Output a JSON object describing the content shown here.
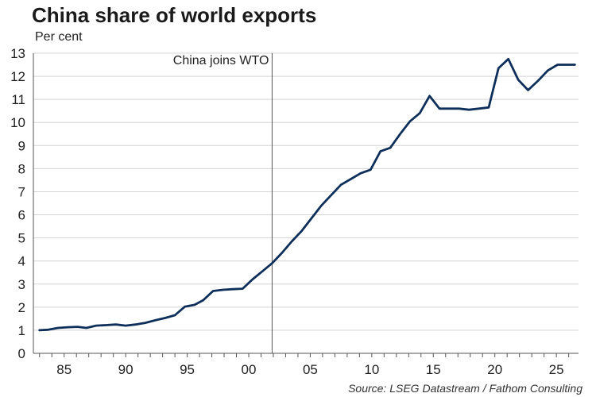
{
  "chart_data": {
    "type": "line",
    "title": "China share of world exports",
    "ylabel": "Per cent",
    "source": "Source: LSEG Datastream / Fathom Consulting",
    "ylim": [
      0,
      13
    ],
    "xlim": [
      1982.5,
      2026.8
    ],
    "yticks": [
      0,
      1,
      2,
      3,
      4,
      5,
      6,
      7,
      8,
      9,
      10,
      11,
      12,
      13
    ],
    "xticks": [
      {
        "value": 1985,
        "label": "85"
      },
      {
        "value": 1990,
        "label": "90"
      },
      {
        "value": 1995,
        "label": "95"
      },
      {
        "value": 2000,
        "label": "00"
      },
      {
        "value": 2005,
        "label": "05"
      },
      {
        "value": 2010,
        "label": "10"
      },
      {
        "value": 2015,
        "label": "15"
      },
      {
        "value": 2020,
        "label": "20"
      },
      {
        "value": 2025,
        "label": "25"
      }
    ],
    "grid": true,
    "annotation": {
      "x": 2001.9,
      "label": "China joins WTO"
    },
    "series": [
      {
        "color": "#0d2f5a",
        "x": [
          1983,
          1983.7,
          1984.5,
          1985.3,
          1986.1,
          1986.8,
          1987.6,
          1988.4,
          1989.2,
          1990,
          1990.8,
          1991.6,
          1992.4,
          1993.2,
          1994,
          1994.8,
          1995.6,
          1996.3,
          1997.1,
          1997.9,
          1998.7,
          1999.5,
          2000.3,
          2001.1,
          2001.9,
          2002.7,
          2003.5,
          2004.3,
          2005.1,
          2005.9,
          2006.7,
          2007.5,
          2008.3,
          2009.1,
          2009.9,
          2010.7,
          2011.5,
          2012.3,
          2013.1,
          2013.9,
          2014.7,
          2015.5,
          2016.3,
          2017.1,
          2017.9,
          2018.7,
          2019.5,
          2020.3,
          2021.1,
          2021.9,
          2022.7,
          2023.5,
          2024.3,
          2025.1,
          2025.9,
          2026.5
        ],
        "values": [
          1.0,
          1.02,
          1.1,
          1.13,
          1.15,
          1.1,
          1.2,
          1.22,
          1.25,
          1.2,
          1.25,
          1.32,
          1.43,
          1.53,
          1.65,
          2.02,
          2.1,
          2.3,
          2.7,
          2.75,
          2.78,
          2.8,
          3.2,
          3.55,
          3.9,
          4.35,
          4.85,
          5.3,
          5.85,
          6.4,
          6.85,
          7.3,
          7.55,
          7.8,
          7.95,
          8.75,
          8.9,
          9.5,
          10.05,
          10.4,
          11.15,
          10.6,
          10.6,
          10.6,
          10.55,
          10.6,
          10.65,
          12.35,
          12.75,
          11.85,
          11.4,
          11.8,
          12.25,
          12.5,
          12.5,
          12.5
        ]
      }
    ]
  }
}
